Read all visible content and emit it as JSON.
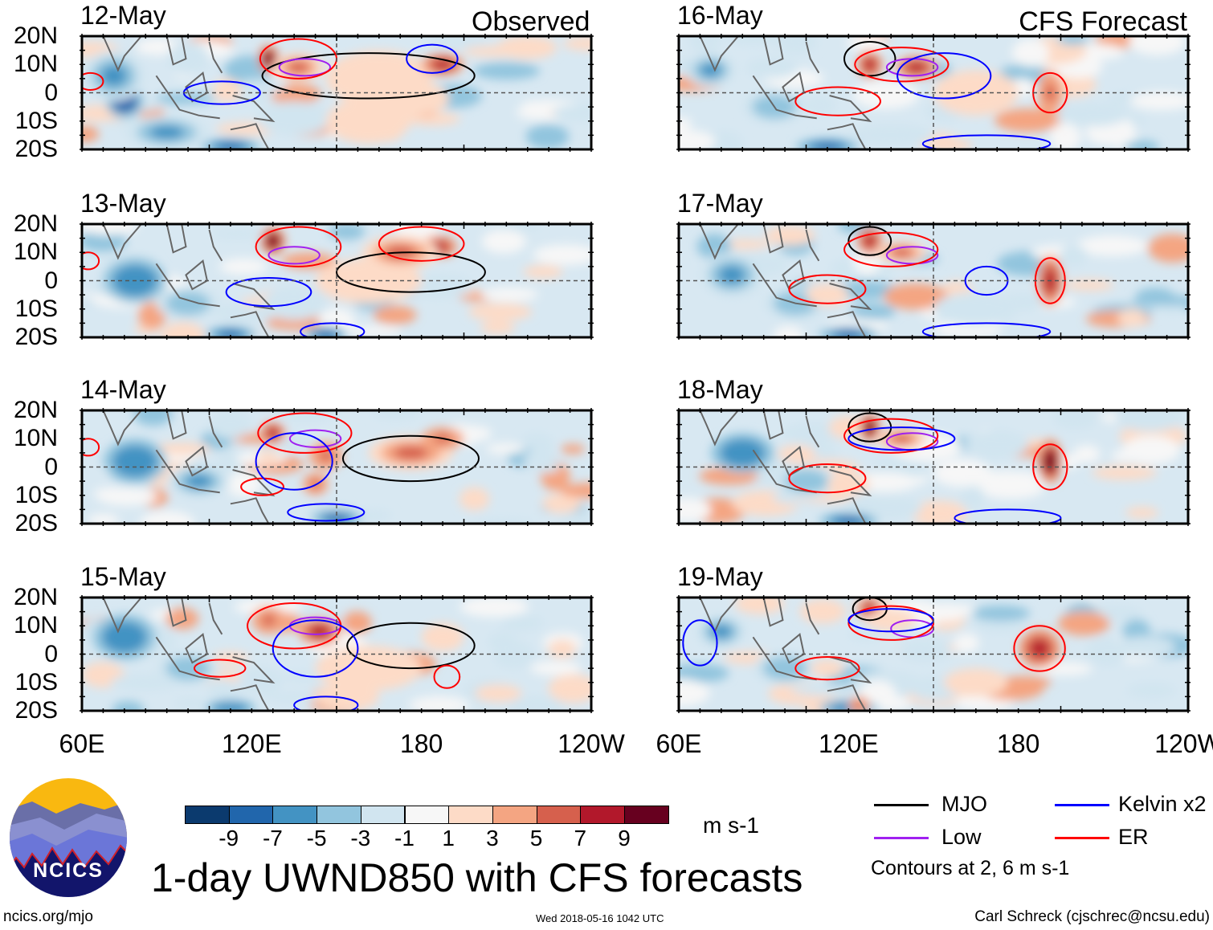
{
  "header": {
    "observed_label": "Observed",
    "forecast_label": "CFS Forecast"
  },
  "lat_labels": [
    "20N",
    "10N",
    "0",
    "10S",
    "20S"
  ],
  "lon_labels": [
    "60E",
    "120E",
    "180",
    "120W"
  ],
  "panels": [
    {
      "date": "12-May",
      "col": 0,
      "row": 0,
      "anomalies": [
        [
          80,
          -3,
          -9,
          9,
          6
        ],
        [
          75,
          6,
          -6,
          15,
          9
        ],
        [
          100,
          -14,
          -6,
          20,
          6
        ],
        [
          130,
          -19,
          -8,
          14,
          3
        ],
        [
          160,
          -9,
          -4,
          18,
          6
        ],
        [
          110,
          12,
          -4,
          10,
          6
        ],
        [
          148,
          12,
          9,
          5,
          5
        ],
        [
          162,
          9,
          5,
          12,
          5
        ],
        [
          200,
          5,
          4,
          25,
          10
        ],
        [
          230,
          10,
          7,
          10,
          4
        ],
        [
          195,
          -10,
          3,
          20,
          8
        ],
        [
          215,
          -2,
          4,
          18,
          6
        ]
      ],
      "contours": [
        [
          "mjo",
          195,
          6,
          50,
          8
        ],
        [
          "low",
          165,
          9,
          12,
          3
        ],
        [
          "er",
          162,
          12,
          18,
          7
        ],
        [
          "kelvin",
          126,
          0,
          18,
          4
        ],
        [
          "kelvin",
          225,
          12,
          12,
          5
        ],
        [
          "er",
          64,
          4,
          6,
          3
        ]
      ]
    },
    {
      "date": "13-May",
      "col": 0,
      "row": 1,
      "anomalies": [
        [
          85,
          0,
          -7,
          15,
          8
        ],
        [
          110,
          -8,
          -5,
          15,
          6
        ],
        [
          130,
          -19,
          -8,
          12,
          3
        ],
        [
          175,
          -19,
          -8,
          10,
          3
        ],
        [
          150,
          14,
          9,
          6,
          5
        ],
        [
          228,
          12,
          8,
          9,
          4
        ],
        [
          195,
          0,
          3,
          25,
          8
        ],
        [
          210,
          10,
          5,
          18,
          6
        ],
        [
          160,
          -8,
          -3,
          15,
          6
        ]
      ],
      "contours": [
        [
          "mjo",
          215,
          3,
          35,
          7
        ],
        [
          "low",
          160,
          9,
          12,
          3
        ],
        [
          "er",
          162,
          12,
          20,
          7
        ],
        [
          "er",
          220,
          13,
          20,
          6
        ],
        [
          "kelvin",
          148,
          -4,
          20,
          5
        ],
        [
          "kelvin",
          178,
          -18,
          15,
          3
        ],
        [
          "er",
          63,
          7,
          5,
          3
        ]
      ]
    },
    {
      "date": "14-May",
      "col": 0,
      "row": 2,
      "anomalies": [
        [
          85,
          2,
          -7,
          15,
          8
        ],
        [
          115,
          -5,
          -6,
          15,
          6
        ],
        [
          180,
          -18,
          -8,
          12,
          3
        ],
        [
          150,
          12,
          7,
          6,
          4
        ],
        [
          175,
          4,
          6,
          8,
          5
        ],
        [
          170,
          -6,
          6,
          6,
          4
        ],
        [
          215,
          5,
          5,
          20,
          6
        ],
        [
          230,
          10,
          6,
          10,
          4
        ],
        [
          130,
          15,
          -3,
          10,
          5
        ]
      ],
      "contours": [
        [
          "mjo",
          215,
          3,
          32,
          8
        ],
        [
          "low",
          170,
          10,
          12,
          3
        ],
        [
          "er",
          165,
          12,
          22,
          7
        ],
        [
          "er",
          145,
          -7,
          10,
          3
        ],
        [
          "kelvin",
          160,
          2,
          18,
          10
        ],
        [
          "kelvin",
          175,
          -16,
          18,
          3
        ],
        [
          "er",
          63,
          7,
          5,
          3
        ]
      ]
    },
    {
      "date": "15-May",
      "col": 0,
      "row": 3,
      "anomalies": [
        [
          80,
          6,
          -7,
          15,
          8
        ],
        [
          110,
          -5,
          -5,
          15,
          6
        ],
        [
          130,
          -19,
          -7,
          12,
          3
        ],
        [
          148,
          12,
          6,
          8,
          5
        ],
        [
          172,
          8,
          7,
          10,
          5
        ],
        [
          195,
          -5,
          4,
          25,
          8
        ],
        [
          230,
          6,
          4,
          10,
          5
        ],
        [
          185,
          -15,
          3,
          15,
          5
        ]
      ],
      "contours": [
        [
          "mjo",
          215,
          3,
          30,
          8
        ],
        [
          "low",
          170,
          10,
          12,
          3
        ],
        [
          "er",
          160,
          10,
          22,
          8
        ],
        [
          "er",
          125,
          -5,
          12,
          3
        ],
        [
          "kelvin",
          170,
          2,
          20,
          10
        ],
        [
          "kelvin",
          175,
          -18,
          15,
          3
        ],
        [
          "er",
          232,
          -8,
          6,
          4
        ]
      ]
    },
    {
      "date": "16-May",
      "col": 1,
      "row": 0,
      "anomalies": [
        [
          75,
          8,
          -6,
          12,
          6
        ],
        [
          105,
          -5,
          -5,
          15,
          6
        ],
        [
          130,
          -19,
          -8,
          15,
          3
        ],
        [
          150,
          10,
          8,
          6,
          5
        ],
        [
          172,
          9,
          7,
          10,
          4
        ],
        [
          200,
          0,
          3,
          20,
          8
        ],
        [
          235,
          0,
          6,
          6,
          8
        ],
        [
          160,
          -15,
          -3,
          20,
          4
        ]
      ],
      "contours": [
        [
          "mjo",
          150,
          12,
          12,
          6
        ],
        [
          "low",
          170,
          9,
          12,
          3
        ],
        [
          "er",
          165,
          10,
          22,
          6
        ],
        [
          "er",
          135,
          -3,
          20,
          5
        ],
        [
          "kelvin",
          185,
          6,
          22,
          8
        ],
        [
          "kelvin",
          205,
          -18,
          30,
          3
        ],
        [
          "er",
          235,
          0,
          8,
          7
        ]
      ]
    },
    {
      "date": "17-May",
      "col": 1,
      "row": 1,
      "anomalies": [
        [
          85,
          2,
          -6,
          15,
          8
        ],
        [
          115,
          -8,
          -5,
          15,
          6
        ],
        [
          140,
          -19,
          -8,
          14,
          3
        ],
        [
          150,
          14,
          8,
          6,
          5
        ],
        [
          165,
          10,
          5,
          12,
          4
        ],
        [
          235,
          0,
          8,
          6,
          9
        ],
        [
          130,
          -5,
          4,
          10,
          4
        ],
        [
          200,
          -10,
          -3,
          20,
          6
        ]
      ],
      "contours": [
        [
          "mjo",
          150,
          14,
          10,
          5
        ],
        [
          "low",
          170,
          9,
          12,
          3
        ],
        [
          "er",
          160,
          11,
          22,
          6
        ],
        [
          "er",
          130,
          -3,
          18,
          5
        ],
        [
          "kelvin",
          205,
          0,
          10,
          5
        ],
        [
          "kelvin",
          205,
          -18,
          30,
          3
        ],
        [
          "er",
          235,
          0,
          7,
          8
        ]
      ]
    },
    {
      "date": "18-May",
      "col": 1,
      "row": 2,
      "anomalies": [
        [
          90,
          5,
          -7,
          15,
          7
        ],
        [
          120,
          -5,
          -5,
          15,
          6
        ],
        [
          140,
          -19,
          -8,
          14,
          3
        ],
        [
          150,
          14,
          9,
          5,
          5
        ],
        [
          165,
          10,
          5,
          12,
          4
        ],
        [
          235,
          2,
          9,
          6,
          8
        ],
        [
          140,
          -6,
          4,
          10,
          4
        ],
        [
          210,
          8,
          -4,
          15,
          5
        ]
      ],
      "contours": [
        [
          "mjo",
          150,
          14,
          10,
          5
        ],
        [
          "low",
          170,
          9,
          12,
          3
        ],
        [
          "er",
          160,
          11,
          22,
          6
        ],
        [
          "er",
          130,
          -4,
          18,
          5
        ],
        [
          "kelvin",
          165,
          10,
          25,
          4
        ],
        [
          "kelvin",
          215,
          -18,
          25,
          3
        ],
        [
          "er",
          235,
          0,
          8,
          8
        ]
      ]
    },
    {
      "date": "19-May",
      "col": 1,
      "row": 3,
      "anomalies": [
        [
          80,
          8,
          -6,
          12,
          6
        ],
        [
          110,
          -5,
          -5,
          15,
          6
        ],
        [
          140,
          -19,
          -7,
          14,
          3
        ],
        [
          150,
          16,
          8,
          6,
          4
        ],
        [
          160,
          12,
          4,
          12,
          4
        ],
        [
          230,
          2,
          8,
          10,
          7
        ],
        [
          145,
          -18,
          6,
          5,
          3
        ],
        [
          130,
          -5,
          4,
          8,
          3
        ],
        [
          200,
          -10,
          3,
          15,
          5
        ]
      ],
      "contours": [
        [
          "mjo",
          150,
          16,
          8,
          4
        ],
        [
          "low",
          170,
          9,
          10,
          3
        ],
        [
          "er",
          160,
          11,
          20,
          6
        ],
        [
          "er",
          130,
          -5,
          15,
          4
        ],
        [
          "kelvin",
          160,
          12,
          20,
          4
        ],
        [
          "kelvin",
          70,
          4,
          8,
          8
        ],
        [
          "er",
          230,
          2,
          12,
          8
        ]
      ]
    }
  ],
  "colorbar": {
    "colors": [
      "#0b3a6e",
      "#2166ac",
      "#4393c3",
      "#92c5de",
      "#d1e5f0",
      "#f7f7f7",
      "#fddbc7",
      "#f4a582",
      "#d6604d",
      "#b2182b",
      "#67001f"
    ],
    "ticks": [
      "-9",
      "-7",
      "-5",
      "-3",
      "-1",
      "1",
      "3",
      "5",
      "7",
      "9"
    ],
    "units": "m s-1"
  },
  "contour_colors": {
    "mjo": "#000000",
    "low": "#a020f0",
    "kelvin": "#0000ff",
    "er": "#ff0000"
  },
  "legend": {
    "mjo": "MJO",
    "kelvin": "Kelvin x2",
    "low": "Low",
    "er": "ER",
    "note": "Contours at 2, 6 m s-1"
  },
  "title": "1-day UWND850 with CFS forecasts",
  "logo_text": "NCICS",
  "footer": {
    "url": "ncics.org/mjo",
    "timestamp": "Wed 2018-05-16 1042 UTC",
    "credit": "Carl Schreck (cjschrec@ncsu.edu)"
  }
}
